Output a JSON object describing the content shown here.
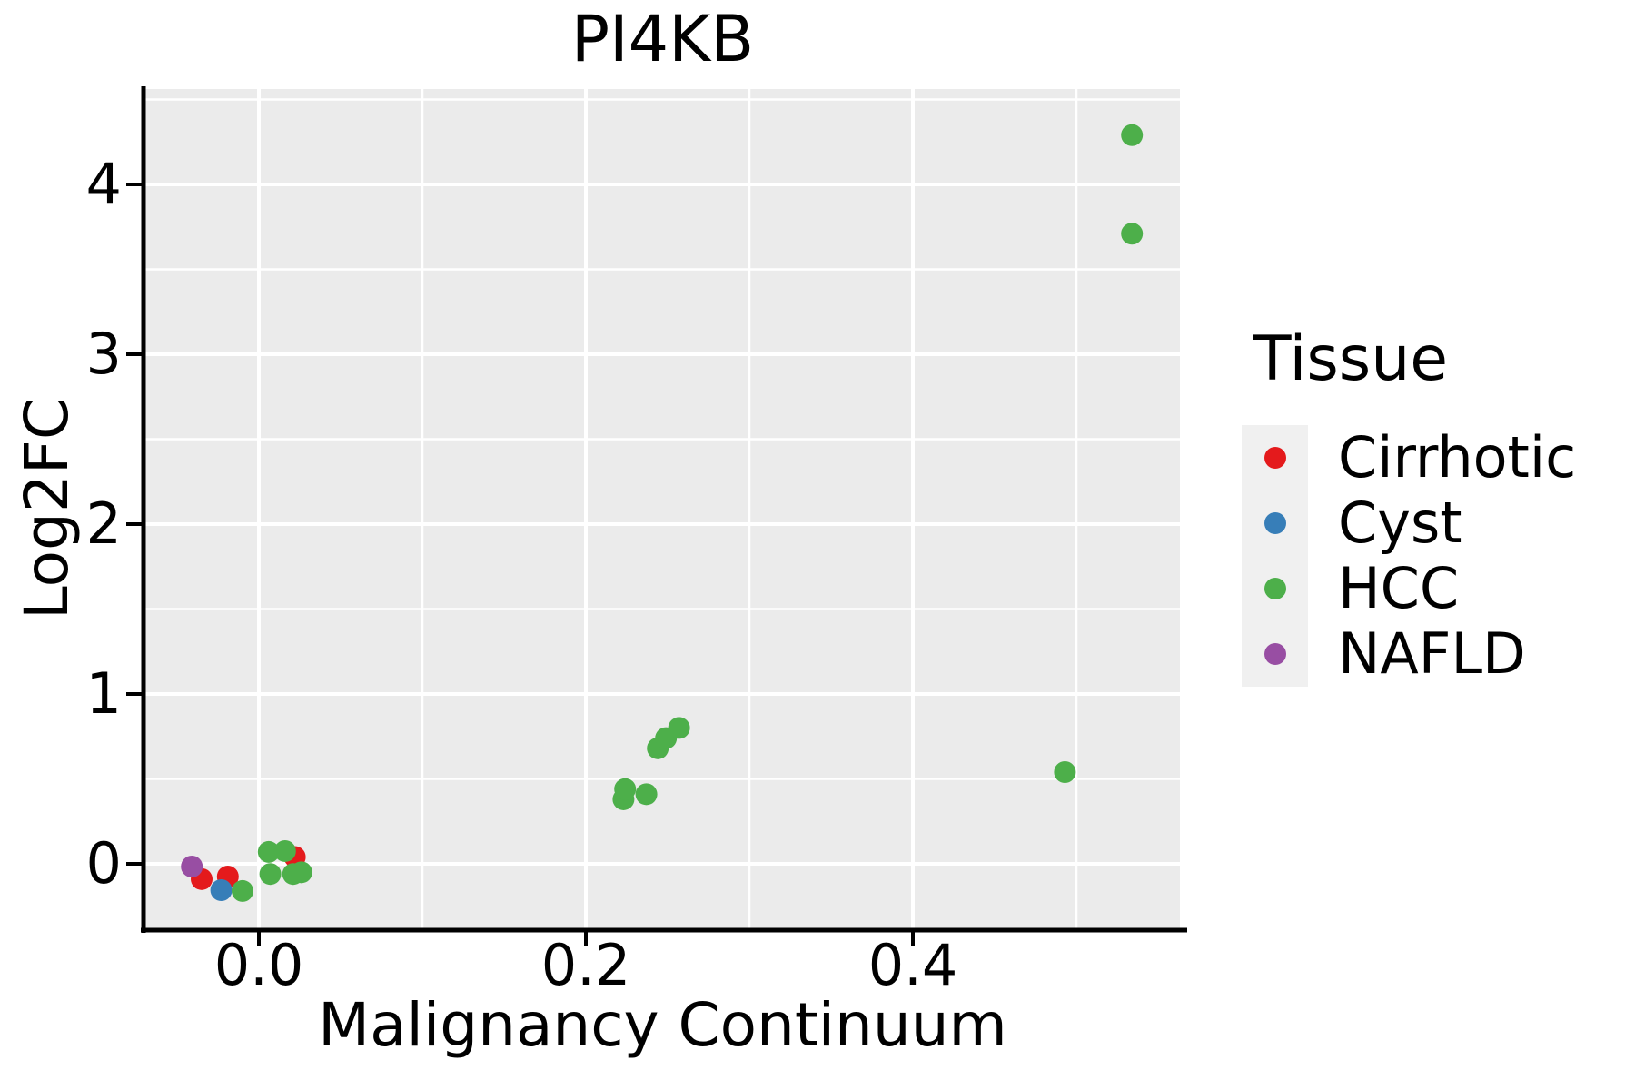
{
  "title": "PI4KB",
  "x_axis": {
    "label": "Malignancy Continuum",
    "tick_labels": [
      "0.0",
      "0.2",
      "0.4"
    ]
  },
  "y_axis": {
    "label": "Log2FC",
    "tick_labels": [
      "0",
      "1",
      "2",
      "3",
      "4"
    ]
  },
  "legend": {
    "title": "Tissue",
    "items": [
      {
        "label": "Cirrhotic",
        "color": "#E41A1C"
      },
      {
        "label": "Cyst",
        "color": "#377EB8"
      },
      {
        "label": "HCC",
        "color": "#4DAF4A"
      },
      {
        "label": "NAFLD",
        "color": "#984EA3"
      }
    ]
  },
  "colors": {
    "panel_background": "#EBEBEB",
    "gridline": "#FFFFFF",
    "axis_line": "#000000",
    "legend_key_background": "#F0F0F0"
  },
  "chart_data": {
    "type": "scatter",
    "title": "PI4KB",
    "xlabel": "Malignancy Continuum",
    "ylabel": "Log2FC",
    "xlim": [
      -0.07,
      0.563
    ],
    "ylim": [
      -0.38,
      4.56
    ],
    "x_ticks": [
      {
        "value": 0.0,
        "label": "0.0"
      },
      {
        "value": 0.2,
        "label": "0.2"
      },
      {
        "value": 0.4,
        "label": "0.4"
      }
    ],
    "y_ticks": [
      {
        "value": 0,
        "label": "0"
      },
      {
        "value": 1,
        "label": "1"
      },
      {
        "value": 2,
        "label": "2"
      },
      {
        "value": 3,
        "label": "3"
      },
      {
        "value": 4,
        "label": "4"
      }
    ],
    "x_minor_ticks": [
      0.1,
      0.3,
      0.5
    ],
    "y_minor_ticks": [
      0.5,
      1.5,
      2.5,
      3.5,
      4.5
    ],
    "grid": "white major and minor gridlines on gray panel",
    "legend_position": "right",
    "legend_title": "Tissue",
    "series": [
      {
        "name": "Cirrhotic",
        "color": "#E41A1C",
        "points": [
          [
            -0.035,
            -0.09
          ],
          [
            -0.019,
            -0.075
          ],
          [
            0.022,
            0.04
          ]
        ]
      },
      {
        "name": "Cyst",
        "color": "#377EB8",
        "points": [
          [
            -0.023,
            -0.155
          ]
        ]
      },
      {
        "name": "HCC",
        "color": "#4DAF4A",
        "points": [
          [
            -0.01,
            -0.16
          ],
          [
            0.006,
            0.07
          ],
          [
            0.016,
            0.075
          ],
          [
            0.007,
            -0.06
          ],
          [
            0.021,
            -0.06
          ],
          [
            0.026,
            -0.05
          ],
          [
            0.223,
            0.38
          ],
          [
            0.224,
            0.44
          ],
          [
            0.237,
            0.41
          ],
          [
            0.244,
            0.68
          ],
          [
            0.249,
            0.74
          ],
          [
            0.257,
            0.8
          ],
          [
            0.493,
            0.54
          ],
          [
            0.534,
            3.71
          ],
          [
            0.534,
            4.29
          ]
        ]
      },
      {
        "name": "NAFLD",
        "color": "#984EA3",
        "points": [
          [
            -0.041,
            -0.016
          ]
        ]
      }
    ]
  }
}
